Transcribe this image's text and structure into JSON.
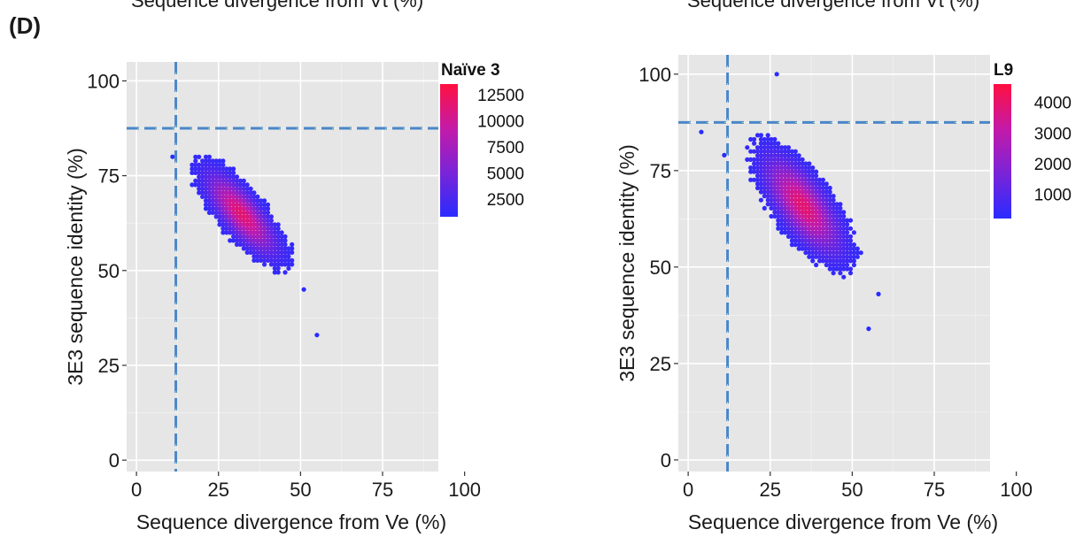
{
  "figure": {
    "panel_label": "(D)",
    "cut_titles": [
      "Sequence divergence from Vt (%)",
      "Sequence divergence from Vt (%)"
    ]
  },
  "chart_data": [
    {
      "type": "heatmap",
      "title": "",
      "xlabel": "Sequence divergence from Ve (%)",
      "ylabel": "3E3 sequence identity (%)",
      "xlim": [
        -3,
        92
      ],
      "ylim": [
        -3,
        105
      ],
      "x_ticks": [
        0,
        25,
        50,
        75,
        100
      ],
      "y_ticks": [
        0,
        25,
        50,
        75,
        100
      ],
      "grid": true,
      "reference_lines": {
        "x": 12,
        "y": 87.5,
        "style": "dashed",
        "color": "#4a86c8"
      },
      "density_core": {
        "center": [
          32,
          65
        ],
        "slope": -1.0,
        "major_sd": 10,
        "minor_sd": 3.5
      },
      "outliers": [
        [
          55,
          33
        ],
        [
          11,
          80
        ],
        [
          51,
          45
        ]
      ],
      "legend": {
        "title": "Naïve 3",
        "position": "right",
        "range": [
          800,
          13500
        ],
        "ticks": [
          12500,
          10000,
          7500,
          5000,
          2500
        ],
        "colors": [
          "#2a2bff",
          "#7a24d8",
          "#c41aa8",
          "#ff1040"
        ]
      }
    },
    {
      "type": "heatmap",
      "title": "",
      "xlabel": "Sequence divergence from Ve (%)",
      "ylabel": "3E3 sequence identity (%)",
      "xlim": [
        -3,
        92
      ],
      "ylim": [
        -3,
        105
      ],
      "x_ticks": [
        0,
        25,
        50,
        75,
        100
      ],
      "y_ticks": [
        0,
        25,
        50,
        75,
        100
      ],
      "grid": true,
      "reference_lines": {
        "x": 12,
        "y": 87.5,
        "style": "dashed",
        "color": "#4a86c8"
      },
      "density_core": {
        "center": [
          35,
          66
        ],
        "slope": -1.1,
        "major_sd": 11,
        "minor_sd": 4.5
      },
      "outliers": [
        [
          4,
          85
        ],
        [
          11,
          79
        ],
        [
          27,
          100
        ],
        [
          55,
          34
        ],
        [
          58,
          43
        ]
      ],
      "legend": {
        "title": "L9",
        "position": "right",
        "range": [
          200,
          4600
        ],
        "ticks": [
          4000,
          3000,
          2000,
          1000
        ],
        "colors": [
          "#2a2bff",
          "#7a24d8",
          "#c41aa8",
          "#ff1040"
        ]
      }
    }
  ]
}
